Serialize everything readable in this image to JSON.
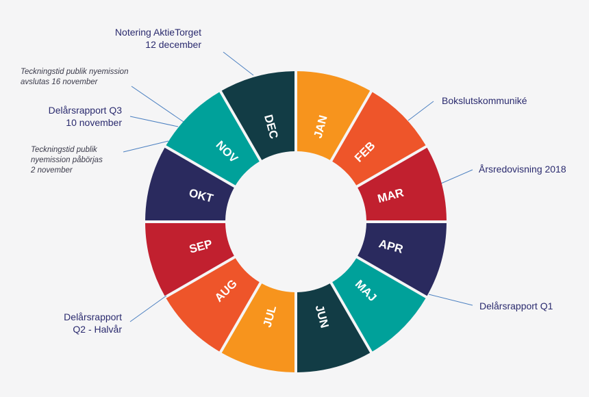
{
  "wheel": {
    "colors": {
      "orange": "#f7941d",
      "red_orange": "#ee552a",
      "red": "#c1202f",
      "navy": "#2a2a5e",
      "teal": "#00a19a",
      "dark_teal": "#123c45"
    },
    "months": [
      {
        "label": "JAN",
        "color": "#f7941d"
      },
      {
        "label": "FEB",
        "color": "#ee552a"
      },
      {
        "label": "MAR",
        "color": "#c1202f"
      },
      {
        "label": "APR",
        "color": "#2a2a5e"
      },
      {
        "label": "MAJ",
        "color": "#00a19a"
      },
      {
        "label": "JUN",
        "color": "#123c45"
      },
      {
        "label": "JUL",
        "color": "#f7941d"
      },
      {
        "label": "AUG",
        "color": "#ee552a"
      },
      {
        "label": "SEP",
        "color": "#c1202f"
      },
      {
        "label": "OKT",
        "color": "#2a2a5e"
      },
      {
        "label": "NOV",
        "color": "#00a19a"
      },
      {
        "label": "DEC",
        "color": "#123c45"
      }
    ]
  },
  "annotations": {
    "notering": {
      "line1": "Notering AktieTorget",
      "line2": "12 december"
    },
    "teckning_slut": {
      "line1": "Teckningstid publik nyemission",
      "line2": "avslutas 16 november"
    },
    "q3": {
      "line1": "Delårsrapport Q3",
      "line2": "10 november"
    },
    "teckning_start": {
      "line1": "Teckningstid publik",
      "line2": "nyemission påbörjas",
      "line3": "2 november"
    },
    "bokslut": {
      "line1": "Bokslutskommuniké"
    },
    "arsredovisning": {
      "line1": "Årsredovisning 2018"
    },
    "q1": {
      "line1": "Delårsrapport Q1"
    },
    "q2": {
      "line1": "Delårsrapport",
      "line2": "Q2 - Halvår"
    }
  },
  "leader_color": "#4a7fc0"
}
